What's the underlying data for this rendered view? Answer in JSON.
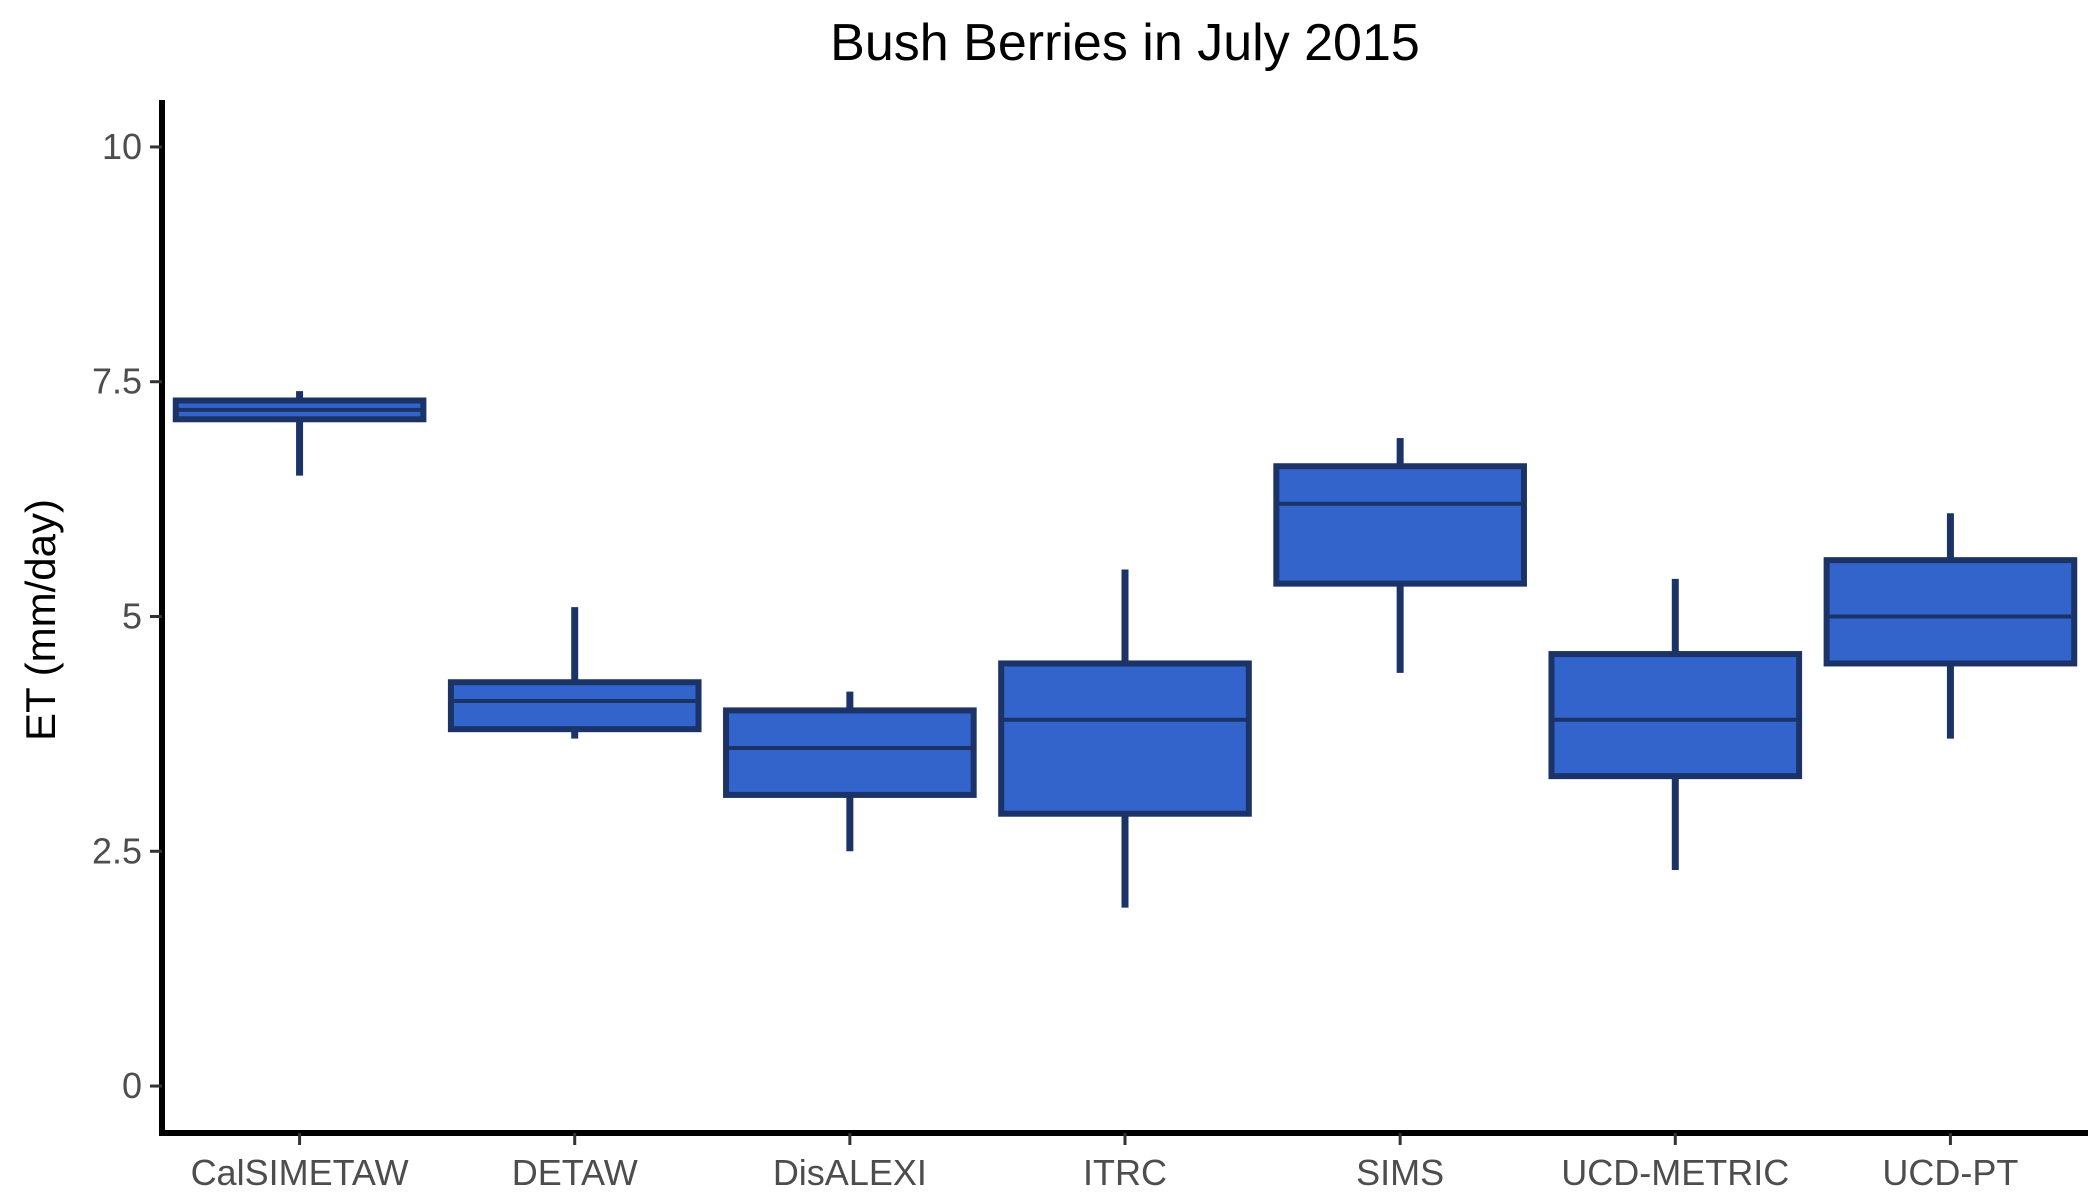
{
  "colors": {
    "box_fill": "#3264CC",
    "box_stroke": "#1B3366",
    "axis": "#000000",
    "tick_text": "#4d4d4d"
  },
  "chart_data": {
    "type": "box",
    "title": "Bush Berries in July 2015",
    "xlabel": "",
    "ylabel": "ET (mm/day)",
    "ylim": [
      -0.5,
      10.5
    ],
    "yticks": [
      0,
      2.5,
      5,
      7.5,
      10
    ],
    "ytick_labels": [
      "0",
      "2.5",
      "5",
      "7.5",
      "10"
    ],
    "grid": false,
    "categories": [
      "CalSIMETAW",
      "DETAW",
      "DisALEXI",
      "ITRC",
      "SIMS",
      "UCD-METRIC",
      "UCD-PT"
    ],
    "boxes": [
      {
        "category": "CalSIMETAW",
        "min": 6.5,
        "q1": 7.1,
        "median": 7.2,
        "q3": 7.3,
        "max": 7.4
      },
      {
        "category": "DETAW",
        "min": 3.7,
        "q1": 3.8,
        "median": 4.1,
        "q3": 4.3,
        "max": 5.1
      },
      {
        "category": "DisALEXI",
        "min": 2.5,
        "q1": 3.1,
        "median": 3.6,
        "q3": 4.0,
        "max": 4.2
      },
      {
        "category": "ITRC",
        "min": 1.9,
        "q1": 2.9,
        "median": 3.9,
        "q3": 4.5,
        "max": 5.5
      },
      {
        "category": "SIMS",
        "min": 4.4,
        "q1": 5.35,
        "median": 6.2,
        "q3": 6.6,
        "max": 6.9
      },
      {
        "category": "UCD-METRIC",
        "min": 2.3,
        "q1": 3.3,
        "median": 3.9,
        "q3": 4.6,
        "max": 5.4
      },
      {
        "category": "UCD-PT",
        "min": 3.7,
        "q1": 4.5,
        "median": 5.0,
        "q3": 5.6,
        "max": 6.1
      }
    ]
  }
}
